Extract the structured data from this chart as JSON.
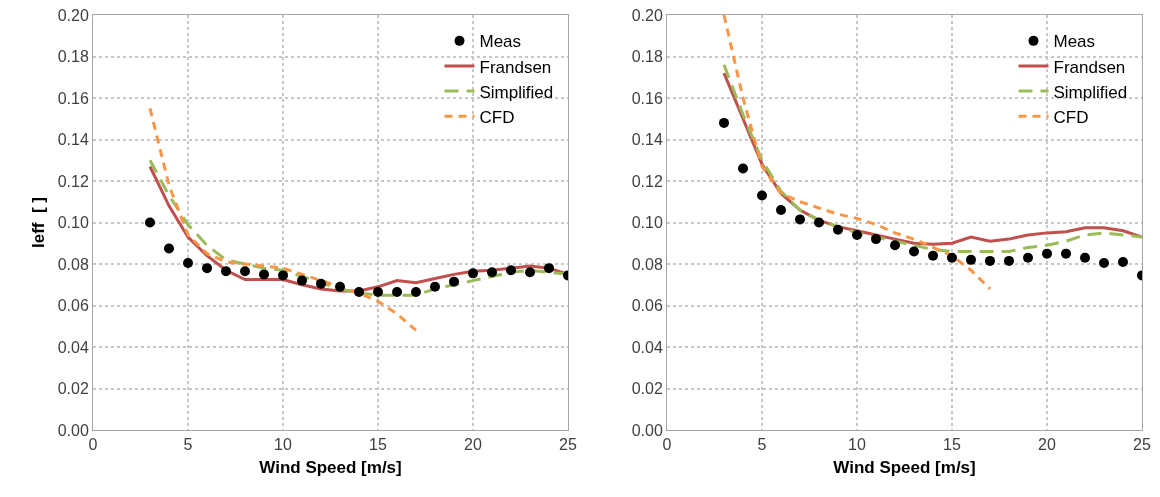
{
  "chart_data": [
    {
      "type": "line",
      "xlabel": "Wind Speed [m/s]",
      "ylabel": "Ieff  [ ]",
      "xlim": [
        0,
        25
      ],
      "ylim": [
        0,
        0.2
      ],
      "xticks": [
        0,
        5,
        10,
        15,
        20,
        25
      ],
      "yticks": [
        {
          "value": 0,
          "label": "0.00"
        },
        {
          "value": 0.02,
          "label": "0.02"
        },
        {
          "value": 0.04,
          "label": "0.04"
        },
        {
          "value": 0.06,
          "label": "0.06"
        },
        {
          "value": 0.08,
          "label": "0.08"
        },
        {
          "value": 0.1,
          "label": "0.10"
        },
        {
          "value": 0.12,
          "label": "0.12"
        },
        {
          "value": 0.14,
          "label": "0.14"
        },
        {
          "value": 0.16,
          "label": "0.16"
        },
        {
          "value": 0.18,
          "label": "0.18"
        },
        {
          "value": 0.2,
          "label": "0.20"
        }
      ],
      "grid": true,
      "legend": "top right",
      "x": [
        3,
        4,
        5,
        6,
        7,
        8,
        9,
        10,
        11,
        12,
        13,
        14,
        15,
        16,
        17,
        18,
        19,
        20,
        21,
        22,
        23,
        24,
        25
      ],
      "series": [
        {
          "name": "Meas",
          "type": "scatter",
          "marker": "circle",
          "color": "#000000",
          "values": [
            0.1,
            0.0875,
            0.0805,
            0.078,
            0.0765,
            0.0765,
            0.075,
            0.0745,
            0.072,
            0.0705,
            0.069,
            0.0665,
            0.0665,
            0.0665,
            0.0665,
            0.069,
            0.0715,
            0.0755,
            0.076,
            0.077,
            0.076,
            0.078,
            0.0745
          ]
        },
        {
          "name": "Frandsen",
          "line_style": "solid",
          "color": "#c0504d",
          "values": [
            0.127,
            0.108,
            0.093,
            0.084,
            0.077,
            0.0725,
            0.0725,
            0.0725,
            0.07,
            0.068,
            0.067,
            0.067,
            0.069,
            0.072,
            0.071,
            0.073,
            0.075,
            0.0765,
            0.077,
            0.078,
            0.079,
            0.078,
            0.075
          ]
        },
        {
          "name": "Simplified",
          "line_style": "dashed",
          "color": "#9bbb59",
          "values": [
            0.13,
            0.113,
            0.099,
            0.089,
            0.082,
            0.08,
            0.078,
            0.077,
            0.074,
            0.071,
            0.068,
            0.066,
            0.065,
            0.065,
            0.065,
            0.068,
            0.07,
            0.072,
            0.074,
            0.076,
            0.077,
            0.076,
            0.075
          ]
        },
        {
          "name": "CFD",
          "line_style": "dashed",
          "color": "#f79646",
          "x": [
            3,
            4,
            5,
            6,
            7,
            8,
            9,
            10,
            11,
            12,
            13,
            14,
            15,
            16,
            17
          ],
          "values": [
            0.155,
            0.118,
            0.094,
            0.085,
            0.081,
            0.08,
            0.079,
            0.078,
            0.075,
            0.072,
            0.069,
            0.066,
            0.062,
            0.056,
            0.048
          ]
        }
      ]
    },
    {
      "type": "line",
      "xlabel": "Wind Speed [m/s]",
      "xlim": [
        0,
        25
      ],
      "ylim": [
        0,
        0.2
      ],
      "xticks": [
        0,
        5,
        10,
        15,
        20,
        25
      ],
      "yticks": [
        {
          "value": 0,
          "label": "0.00"
        },
        {
          "value": 0.02,
          "label": "0.02"
        },
        {
          "value": 0.04,
          "label": "0.04"
        },
        {
          "value": 0.06,
          "label": "0.06"
        },
        {
          "value": 0.08,
          "label": "0.08"
        },
        {
          "value": 0.1,
          "label": "0.10"
        },
        {
          "value": 0.12,
          "label": "0.12"
        },
        {
          "value": 0.14,
          "label": "0.14"
        },
        {
          "value": 0.16,
          "label": "0.16"
        },
        {
          "value": 0.18,
          "label": "0.18"
        },
        {
          "value": 0.2,
          "label": "0.20"
        }
      ],
      "grid": true,
      "legend": "top right",
      "x": [
        3,
        4,
        5,
        6,
        7,
        8,
        9,
        10,
        11,
        12,
        13,
        14,
        15,
        16,
        17,
        18,
        19,
        20,
        21,
        22,
        23,
        24,
        25
      ],
      "series": [
        {
          "name": "Meas",
          "type": "scatter",
          "marker": "circle",
          "color": "#000000",
          "values": [
            0.148,
            0.126,
            0.113,
            0.106,
            0.1015,
            0.1,
            0.0965,
            0.094,
            0.092,
            0.089,
            0.086,
            0.084,
            0.083,
            0.082,
            0.0815,
            0.0815,
            0.083,
            0.085,
            0.085,
            0.083,
            0.0805,
            0.081,
            0.0745
          ]
        },
        {
          "name": "Frandsen",
          "line_style": "solid",
          "color": "#c0504d",
          "values": [
            0.172,
            0.15,
            0.128,
            0.114,
            0.106,
            0.101,
            0.098,
            0.096,
            0.094,
            0.092,
            0.09,
            0.0895,
            0.09,
            0.093,
            0.091,
            0.092,
            0.094,
            0.095,
            0.0955,
            0.0975,
            0.0975,
            0.096,
            0.093
          ]
        },
        {
          "name": "Simplified",
          "line_style": "dashed",
          "color": "#9bbb59",
          "values": [
            0.176,
            0.152,
            0.13,
            0.115,
            0.106,
            0.101,
            0.098,
            0.095,
            0.093,
            0.091,
            0.089,
            0.087,
            0.086,
            0.086,
            0.086,
            0.086,
            0.088,
            0.089,
            0.091,
            0.094,
            0.095,
            0.094,
            0.093
          ]
        },
        {
          "name": "CFD",
          "line_style": "dashed",
          "color": "#f79646",
          "x": [
            3,
            4,
            5,
            6,
            7,
            8,
            9,
            10,
            11,
            12,
            13,
            14,
            15,
            16,
            17
          ],
          "values": [
            0.2,
            0.16,
            0.127,
            0.114,
            0.11,
            0.107,
            0.104,
            0.102,
            0.099,
            0.095,
            0.092,
            0.088,
            0.084,
            0.077,
            0.068
          ]
        }
      ]
    }
  ]
}
